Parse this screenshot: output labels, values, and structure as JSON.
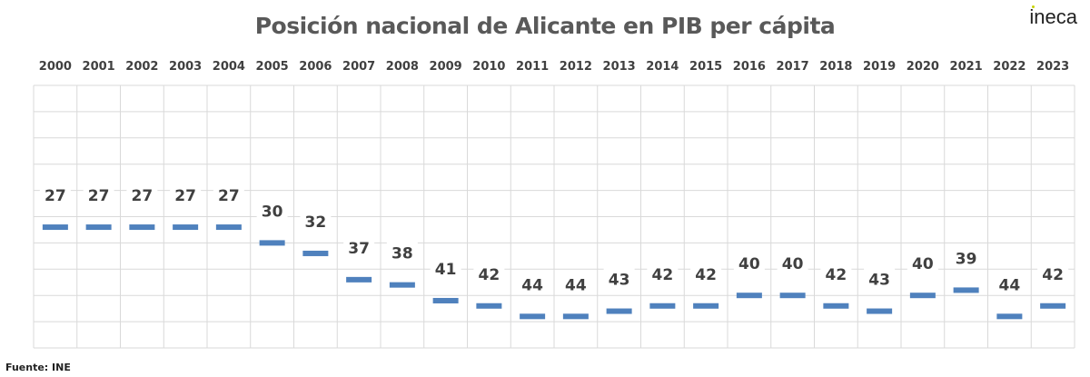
{
  "chart_data": {
    "type": "line",
    "title": "Posición nacional de Alicante en PIB per cápita",
    "categories": [
      "2000",
      "2001",
      "2002",
      "2003",
      "2004",
      "2005",
      "2006",
      "2007",
      "2008",
      "2009",
      "2010",
      "2011",
      "2012",
      "2013",
      "2014",
      "2015",
      "2016",
      "2017",
      "2018",
      "2019",
      "2020",
      "2021",
      "2022",
      "2023"
    ],
    "series": [
      {
        "name": "Posición",
        "values": [
          27,
          27,
          27,
          27,
          27,
          30,
          32,
          37,
          38,
          41,
          42,
          44,
          44,
          43,
          42,
          42,
          40,
          40,
          42,
          43,
          40,
          39,
          44,
          42
        ]
      }
    ],
    "ylim": [
      0,
      50
    ],
    "y_reversed": true,
    "grid": true,
    "marker_color": "#4f81bd",
    "xlabel": "",
    "ylabel": ""
  },
  "source": "Fuente: INE",
  "logo": "ineca"
}
